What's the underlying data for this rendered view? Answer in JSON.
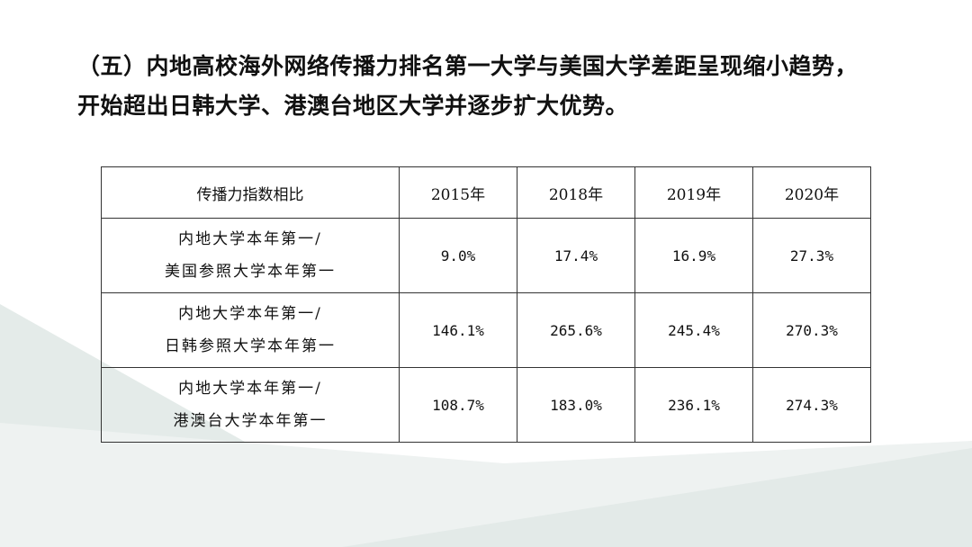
{
  "heading": {
    "line1": "（五）内地高校海外网络传播力排名第一大学与美国大学差距呈现缩小趋势，",
    "line2": "开始超出日韩大学、港澳台地区大学并逐步扩大优势。"
  },
  "table": {
    "header": [
      "传播力指数相比",
      "2015年",
      "2018年",
      "2019年",
      "2020年"
    ],
    "rows": [
      {
        "label_line1": "内地大学本年第一/",
        "label_line2": "美国参照大学本年第一",
        "values": [
          "9.0%",
          "17.4%",
          "16.9%",
          "27.3%"
        ]
      },
      {
        "label_line1": "内地大学本年第一/",
        "label_line2": "日韩参照大学本年第一",
        "values": [
          "146.1%",
          "265.6%",
          "245.4%",
          "270.3%"
        ]
      },
      {
        "label_line1": "内地大学本年第一/",
        "label_line2": "港澳台大学本年第一",
        "values": [
          "108.7%",
          "183.0%",
          "236.1%",
          "274.3%"
        ]
      }
    ]
  },
  "colors": {
    "text": "#111111",
    "border": "#333333",
    "background_shape": "#dfe7e5"
  }
}
